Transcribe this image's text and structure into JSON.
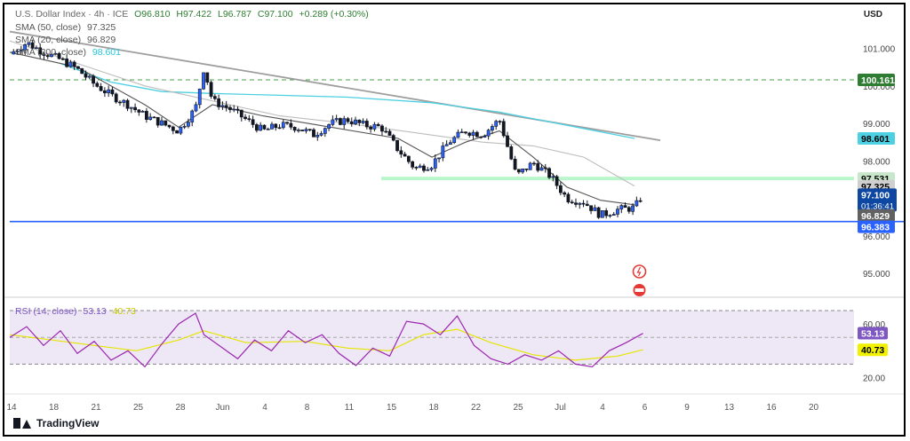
{
  "header": {
    "symbol": "U.S. Dollar Index · 4h · ICE",
    "open": "O96.810",
    "high": "H97.422",
    "low": "L96.787",
    "close": "C97.100",
    "change": "+0.289 (+0.30%)",
    "currency": "USD"
  },
  "legend": {
    "sma50_label": "SMA (50, close)",
    "sma50_value": "97.325",
    "sma20_label": "SMA (20, close)",
    "sma20_value": "96.829",
    "sma200_label": "SMA (200, close)",
    "sma200_value": "98.601",
    "rsi_label": "RSI (14, close)",
    "rsi_value": "53.13",
    "rsi_ma_value": "40.73"
  },
  "branding": "TradingView",
  "colors": {
    "up": "#131722",
    "down": "#131722",
    "up_fill": "#2962ff",
    "sma20": "#555555",
    "sma50": "#bdbdbd",
    "sma200": "#4dd0e1",
    "trendline": "#9e9e9e",
    "support": "#2962ff",
    "resistance_dash": "#43a047",
    "zone": "#b9f6ca",
    "rsi": "#9c27b0",
    "rsi_ma": "#e6e600",
    "rsi_band": "#ede7f6"
  },
  "price_labels": {
    "resistance": "100.161",
    "sma200": "98.601",
    "zone": "97.531",
    "sma50": "97.325",
    "last": "97.100",
    "countdown": "01:36:41",
    "sma20": "96.829",
    "support": "96.383"
  },
  "chart_data": {
    "type": "candlestick",
    "price_axis": {
      "range": [
        94.6,
        101.7
      ],
      "ticks": [
        "101.000",
        "100.000",
        "99.000",
        "98.000",
        "96.000",
        "95.000"
      ]
    },
    "rsi_axis": {
      "range": [
        17,
        72
      ],
      "ticks": [
        "60.00",
        "20.00"
      ],
      "bands": [
        70,
        30
      ]
    },
    "x_ticks": [
      "14",
      "18",
      "21",
      "25",
      "28",
      "Jun",
      "4",
      "8",
      "11",
      "15",
      "18",
      "22",
      "25",
      "Jul",
      "4",
      "6",
      "9",
      "13",
      "16",
      "20"
    ],
    "horizontal_levels": {
      "support": 96.383,
      "resistance": 100.161,
      "zone": 97.531
    },
    "trendline": {
      "from": [
        0,
        101.45
      ],
      "to": [
        152,
        98.55
      ]
    },
    "close_path": [
      [
        0,
        100.85
      ],
      [
        4,
        101.15
      ],
      [
        8,
        100.9
      ],
      [
        12,
        100.7
      ],
      [
        16,
        100.45
      ],
      [
        20,
        100.05
      ],
      [
        24,
        99.75
      ],
      [
        28,
        99.5
      ],
      [
        32,
        99.2
      ],
      [
        36,
        99.0
      ],
      [
        40,
        98.8
      ],
      [
        44,
        99.4
      ],
      [
        46,
        100.5
      ],
      [
        48,
        99.6
      ],
      [
        52,
        99.4
      ],
      [
        56,
        99.1
      ],
      [
        60,
        98.8
      ],
      [
        64,
        98.95
      ],
      [
        68,
        98.9
      ],
      [
        72,
        98.7
      ],
      [
        76,
        99.0
      ],
      [
        80,
        99.1
      ],
      [
        84,
        98.95
      ],
      [
        88,
        98.9
      ],
      [
        92,
        98.3
      ],
      [
        96,
        97.8
      ],
      [
        100,
        97.9
      ],
      [
        104,
        98.5
      ],
      [
        108,
        98.8
      ],
      [
        112,
        98.7
      ],
      [
        116,
        99.1
      ],
      [
        120,
        97.6
      ],
      [
        124,
        97.95
      ],
      [
        128,
        97.6
      ],
      [
        132,
        97.0
      ],
      [
        136,
        96.9
      ],
      [
        140,
        96.55
      ],
      [
        144,
        96.7
      ],
      [
        148,
        96.75
      ],
      [
        150,
        97.1
      ]
    ],
    "sma20_path": [
      [
        0,
        100.9
      ],
      [
        16,
        100.5
      ],
      [
        32,
        99.5
      ],
      [
        40,
        98.9
      ],
      [
        48,
        99.5
      ],
      [
        60,
        99.2
      ],
      [
        76,
        98.9
      ],
      [
        92,
        98.6
      ],
      [
        100,
        98.1
      ],
      [
        108,
        98.5
      ],
      [
        116,
        98.8
      ],
      [
        124,
        98.1
      ],
      [
        132,
        97.3
      ],
      [
        140,
        96.95
      ],
      [
        148,
        96.83
      ]
    ],
    "sma50_path": [
      [
        0,
        101.2
      ],
      [
        16,
        100.6
      ],
      [
        32,
        100.0
      ],
      [
        48,
        99.6
      ],
      [
        64,
        99.2
      ],
      [
        80,
        99.0
      ],
      [
        96,
        98.75
      ],
      [
        112,
        98.5
      ],
      [
        124,
        98.4
      ],
      [
        136,
        98.1
      ],
      [
        148,
        97.33
      ]
    ],
    "sma200_path": [
      [
        12,
        100.6
      ],
      [
        24,
        100.1
      ],
      [
        36,
        99.85
      ],
      [
        48,
        99.8
      ],
      [
        64,
        99.75
      ],
      [
        80,
        99.7
      ],
      [
        100,
        99.55
      ],
      [
        116,
        99.3
      ],
      [
        132,
        98.95
      ],
      [
        148,
        98.6
      ]
    ],
    "rsi_path": [
      [
        0,
        50
      ],
      [
        4,
        58
      ],
      [
        8,
        44
      ],
      [
        12,
        55
      ],
      [
        16,
        38
      ],
      [
        20,
        47
      ],
      [
        24,
        33
      ],
      [
        28,
        40
      ],
      [
        32,
        28
      ],
      [
        36,
        45
      ],
      [
        40,
        60
      ],
      [
        44,
        68
      ],
      [
        46,
        52
      ],
      [
        50,
        43
      ],
      [
        54,
        34
      ],
      [
        58,
        48
      ],
      [
        62,
        40
      ],
      [
        66,
        55
      ],
      [
        70,
        46
      ],
      [
        74,
        52
      ],
      [
        78,
        38
      ],
      [
        82,
        29
      ],
      [
        86,
        42
      ],
      [
        90,
        36
      ],
      [
        94,
        62
      ],
      [
        98,
        60
      ],
      [
        102,
        52
      ],
      [
        106,
        66
      ],
      [
        110,
        44
      ],
      [
        114,
        34
      ],
      [
        118,
        30
      ],
      [
        122,
        37
      ],
      [
        126,
        33
      ],
      [
        130,
        40
      ],
      [
        134,
        30
      ],
      [
        138,
        28
      ],
      [
        142,
        40
      ],
      [
        146,
        46
      ],
      [
        150,
        53
      ]
    ],
    "rsi_ma_path": [
      [
        0,
        52
      ],
      [
        10,
        48
      ],
      [
        20,
        44
      ],
      [
        30,
        40
      ],
      [
        40,
        48
      ],
      [
        46,
        55
      ],
      [
        56,
        46
      ],
      [
        70,
        47
      ],
      [
        80,
        42
      ],
      [
        90,
        40
      ],
      [
        98,
        52
      ],
      [
        106,
        56
      ],
      [
        114,
        46
      ],
      [
        124,
        37
      ],
      [
        134,
        33
      ],
      [
        144,
        36
      ],
      [
        150,
        40.7
      ]
    ]
  }
}
